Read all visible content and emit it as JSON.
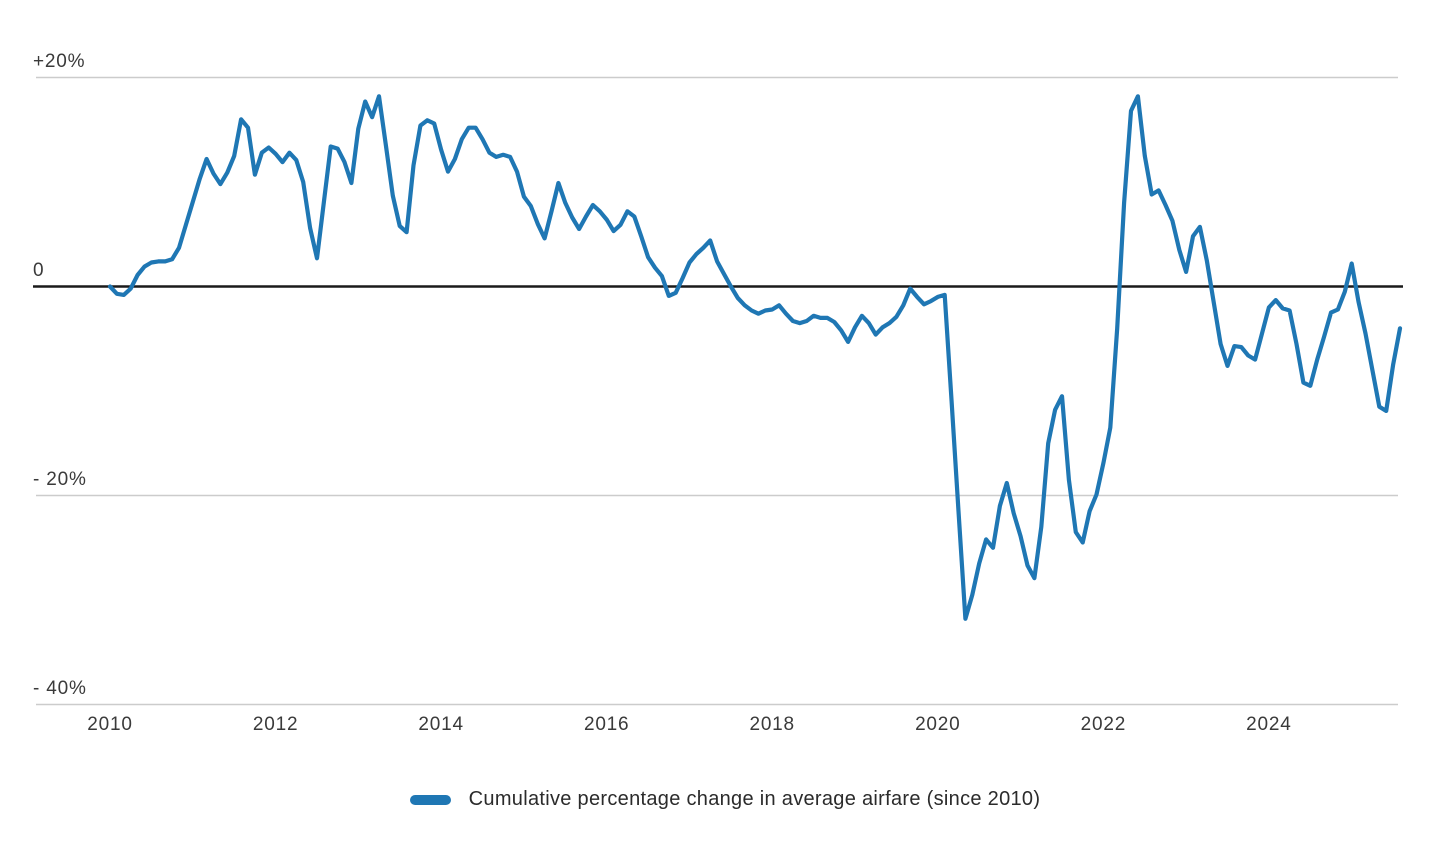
{
  "colors": {
    "background": "#ffffff",
    "line": "#1f77b4",
    "gridline": "#cccccc",
    "zero_baseline": "#1a1a1a",
    "tick_text": "#3a3a3a",
    "legend_text": "#2b2b2b"
  },
  "legend": {
    "label": "Cumulative percentage change in average airfare (since 2010)",
    "swatch_color": "#1f77b4"
  },
  "chart_data": {
    "type": "line",
    "title": "",
    "xlabel": "",
    "ylabel": "",
    "x_start": "2010-01",
    "x_end": "2025-08",
    "frequency": "monthly",
    "grid": "horizontal-only",
    "zero_baseline": true,
    "legend_position": "bottom-center",
    "ylim": [
      -42,
      22
    ],
    "x_ticks": [
      {
        "label": "2010",
        "month_offset": 0
      },
      {
        "label": "2012",
        "month_offset": 24
      },
      {
        "label": "2014",
        "month_offset": 48
      },
      {
        "label": "2016",
        "month_offset": 72
      },
      {
        "label": "2018",
        "month_offset": 96
      },
      {
        "label": "2020",
        "month_offset": 120
      },
      {
        "label": "2022",
        "month_offset": 144
      },
      {
        "label": "2024",
        "month_offset": 168
      }
    ],
    "y_ticks": [
      {
        "label": "+20%",
        "value": 20
      },
      {
        "label": "0",
        "value": 0
      },
      {
        "label": "- 20%",
        "value": -20
      },
      {
        "label": "- 40%",
        "value": -40
      }
    ],
    "series": [
      {
        "name": "Cumulative percentage change in average airfare (since 2010)",
        "color": "#1f77b4",
        "unit": "percent",
        "values": [
          0,
          -0.7,
          -0.8,
          -0.2,
          1.1,
          1.9,
          2.3,
          2.4,
          2.4,
          2.6,
          3.7,
          5.9,
          8.1,
          10.3,
          12.2,
          10.8,
          9.8,
          10.9,
          12.5,
          16.0,
          15.2,
          10.7,
          12.8,
          13.3,
          12.7,
          11.9,
          12.8,
          12.1,
          10.0,
          5.6,
          2.7,
          8.1,
          13.4,
          13.2,
          11.9,
          9.9,
          15.1,
          17.7,
          16.2,
          18.2,
          13.5,
          8.7,
          5.8,
          5.2,
          11.6,
          15.4,
          15.9,
          15.6,
          13.1,
          11.0,
          12.2,
          14.1,
          15.2,
          15.2,
          14.1,
          12.8,
          12.4,
          12.6,
          12.4,
          11.0,
          8.6,
          7.7,
          6.0,
          4.6,
          7.2,
          9.9,
          8.0,
          6.6,
          5.5,
          6.7,
          7.8,
          7.2,
          6.4,
          5.3,
          5.9,
          7.2,
          6.7,
          4.8,
          2.8,
          1.8,
          1.0,
          -0.9,
          -0.6,
          0.8,
          2.3,
          3.1,
          3.7,
          4.4,
          2.4,
          1.2,
          0.0,
          -1.1,
          -1.8,
          -2.3,
          -2.6,
          -2.3,
          -2.2,
          -1.8,
          -2.6,
          -3.3,
          -3.5,
          -3.3,
          -2.8,
          -3.0,
          -3.0,
          -3.4,
          -4.2,
          -5.3,
          -3.9,
          -2.8,
          -3.5,
          -4.6,
          -3.9,
          -3.5,
          -2.9,
          -1.8,
          -0.2,
          -1.0,
          -1.7,
          -1.4,
          -1.0,
          -0.8,
          -11.0,
          -21.5,
          -31.8,
          -29.5,
          -26.5,
          -24.2,
          -25.0,
          -21.0,
          -18.8,
          -21.7,
          -23.9,
          -26.7,
          -27.9,
          -23.0,
          -15.0,
          -11.8,
          -10.5,
          -18.5,
          -23.5,
          -24.5,
          -21.5,
          -19.9,
          -16.9,
          -13.5,
          -4.0,
          8.0,
          16.8,
          18.2,
          12.5,
          8.8,
          9.2,
          7.8,
          6.3,
          3.5,
          1.4,
          4.8,
          5.7,
          2.5,
          -1.5,
          -5.5,
          -7.6,
          -5.7,
          -5.8,
          -6.6,
          -7.0,
          -4.5,
          -2.0,
          -1.3,
          -2.1,
          -2.3,
          -5.5,
          -9.2,
          -9.5,
          -7.0,
          -4.8,
          -2.5,
          -2.2,
          -0.5,
          2.2,
          -1.5,
          -4.5,
          -8.0,
          -11.5,
          -11.9,
          -7.5,
          -4.0
        ]
      }
    ]
  }
}
